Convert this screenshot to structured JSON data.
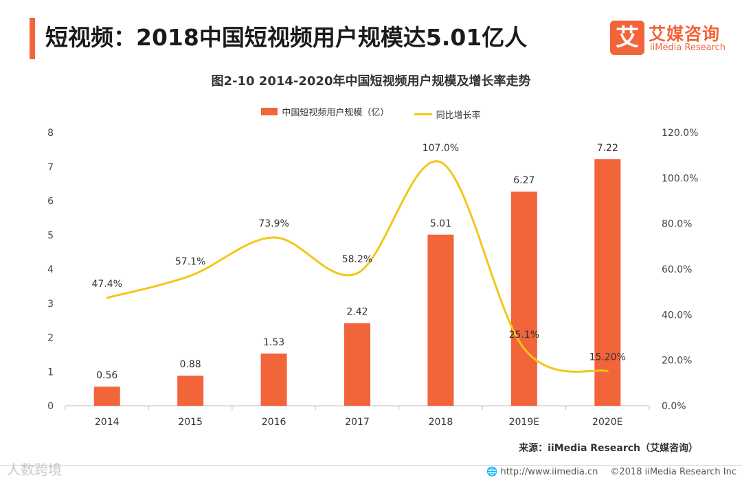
{
  "header": {
    "title": "短视频：2018中国短视频用户规模达5.01亿人"
  },
  "logo": {
    "mark": "艾",
    "name_cn": "艾媒咨询",
    "name_en": "iiMedia Research"
  },
  "colors": {
    "accent": "#f2643a",
    "bar": "#f2643a",
    "line": "#f5c518"
  },
  "chart_data": {
    "type": "bar",
    "title": "图2-10 2014-2020年中国短视频用户规模及增长率走势",
    "categories": [
      "2014",
      "2015",
      "2016",
      "2017",
      "2018",
      "2019E",
      "2020E"
    ],
    "series": [
      {
        "name": "中国短视频用户规模（亿）",
        "type": "bar",
        "axis": "left",
        "values": [
          0.56,
          0.88,
          1.53,
          2.42,
          5.01,
          6.27,
          7.22
        ],
        "labels": [
          "0.56",
          "0.88",
          "1.53",
          "2.42",
          "5.01",
          "6.27",
          "7.22"
        ]
      },
      {
        "name": "同比增长率",
        "type": "line",
        "axis": "right",
        "values": [
          47.4,
          57.1,
          73.9,
          58.2,
          107.0,
          25.1,
          15.2
        ],
        "labels": [
          "47.4%",
          "57.1%",
          "73.9%",
          "58.2%",
          "107.0%",
          "25.1%",
          "15.20%"
        ]
      }
    ],
    "y_left": {
      "min": 0,
      "max": 8,
      "ticks": [
        "0",
        "1",
        "2",
        "3",
        "4",
        "5",
        "6",
        "7",
        "8"
      ]
    },
    "y_right": {
      "min": 0,
      "max": 120,
      "ticks": [
        "0.0%",
        "20.0%",
        "40.0%",
        "60.0%",
        "80.0%",
        "100.0%",
        "120.0%"
      ]
    },
    "grid": false,
    "legend_position": "top"
  },
  "source": "来源：iiMedia Research（艾媒咨询）",
  "footer": {
    "url": "http://www.iimedia.cn",
    "copyright": "©2018 iiMedia Research Inc"
  },
  "watermark": "人数跨境"
}
